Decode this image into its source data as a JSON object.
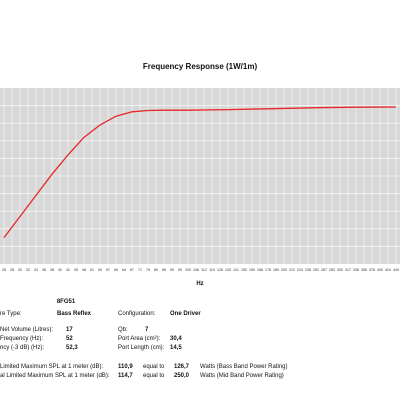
{
  "chart_data": {
    "type": "line",
    "title": "Frequency Response (1W/1m)",
    "xlabel": "Hz",
    "ylabel": "",
    "grid": true,
    "line_color": "#e8262b",
    "plot_bg": "#d8d8d8",
    "x_ticks": [
      "26",
      "28",
      "30",
      "32",
      "34",
      "36",
      "38",
      "40",
      "42",
      "45",
      "48",
      "51",
      "54",
      "57",
      "60",
      "64",
      "67",
      "71",
      "75",
      "80",
      "85",
      "90",
      "95",
      "100",
      "106",
      "112",
      "119",
      "126",
      "133",
      "141",
      "150",
      "159",
      "168",
      "178",
      "189",
      "200",
      "212",
      "224",
      "238",
      "252",
      "267",
      "283",
      "300",
      "317",
      "336",
      "356",
      "378",
      "400",
      "424",
      "449"
    ],
    "series": [
      {
        "x": [
          "26",
          "30",
          "34",
          "38",
          "42",
          "48",
          "54",
          "60",
          "67",
          "75",
          "85",
          "100",
          "133",
          "178",
          "252",
          "336",
          "449"
        ],
        "y": [
          15,
          27,
          39,
          51,
          62,
          72,
          79,
          84,
          86.5,
          87.2,
          87.4,
          87.4,
          87.7,
          88.2,
          88.8,
          89.1,
          89.2
        ]
      }
    ]
  },
  "specs": {
    "model": "8FG51",
    "rows": [
      {
        "label": "re Type:",
        "value": "Bass Reflex",
        "label2": "Configuration:",
        "value2": "One Driver"
      },
      {
        "label": "Net Volume (Litres):",
        "value": "17",
        "label2": "Qb:",
        "value2": "7"
      },
      {
        "label": "Frequency (Hz):",
        "value": "52",
        "label2": "Port Area (cm²):",
        "value2": "30,4"
      },
      {
        "label": "ncy (-3 dB) (Hz):",
        "value": "52,3",
        "label2": "Port Length (cm):",
        "value2": "14,5"
      }
    ],
    "spl_rows": [
      {
        "label": "Limited Maximum SPL at 1 meter (dB):",
        "value": "110,9",
        "equal": "equal to",
        "watts": "126,7",
        "note": "Watts (Bass Band Power Rating)"
      },
      {
        "label": "al Limited Maximum SPL at 1 meter (dB):",
        "value": "114,7",
        "equal": "equal to",
        "watts": "250,0",
        "note": "Watts (Mid Band Power Rating)"
      }
    ]
  }
}
